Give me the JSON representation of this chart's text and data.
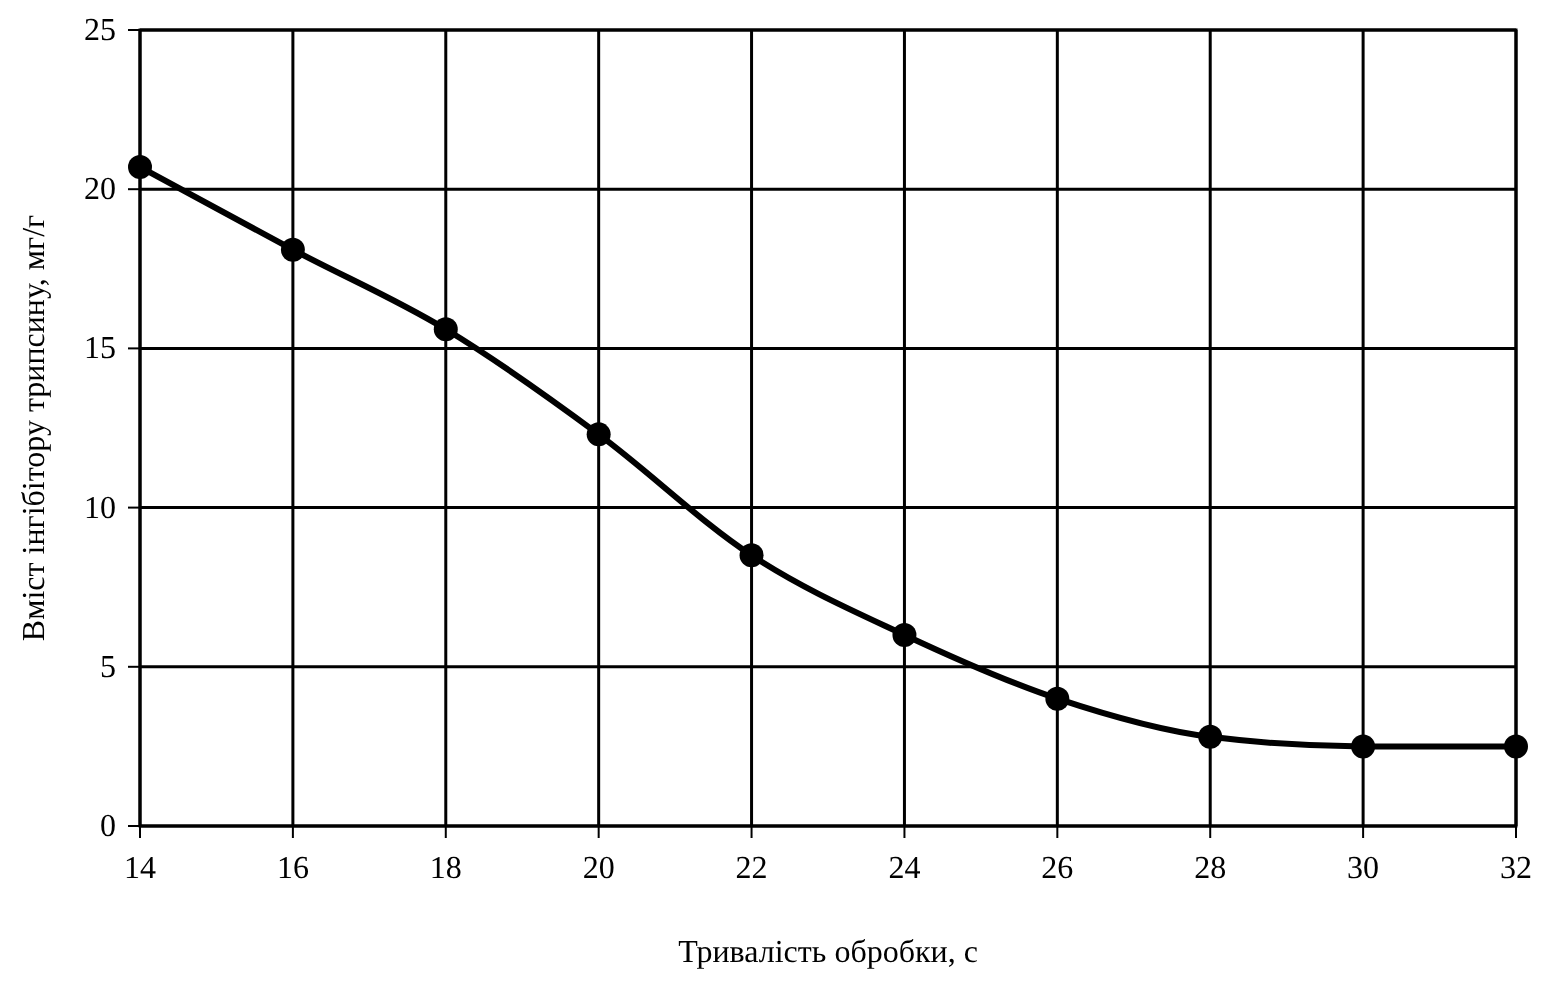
{
  "chart_data": {
    "type": "line",
    "xlabel": "Тривалість обробки, с",
    "ylabel": "Вміст інгібітору трипсину, мг/г",
    "x": [
      14,
      16,
      18,
      20,
      22,
      24,
      26,
      28,
      30,
      32
    ],
    "series": [
      {
        "color": "#000000",
        "values": [
          20.7,
          18.1,
          15.6,
          12.3,
          8.5,
          6.0,
          4.0,
          2.8,
          2.5,
          2.5
        ]
      }
    ],
    "xlim": [
      14,
      32
    ],
    "xticks": [
      14,
      16,
      18,
      20,
      22,
      24,
      26,
      28,
      30,
      32
    ],
    "ylim": [
      0,
      25
    ],
    "yticks": [
      0,
      5,
      10,
      15,
      20,
      25
    ],
    "grid": true,
    "marker": "circle",
    "line_style": "solid"
  }
}
